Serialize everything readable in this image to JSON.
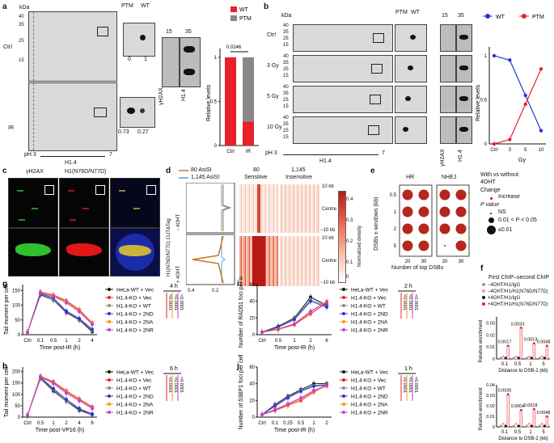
{
  "panels": {
    "a": {
      "label": "a",
      "kda": "kDa",
      "ticks_left": [
        "40",
        "35",
        "25",
        "15"
      ],
      "row_ctrl": "Ctrl",
      "row_ir": "IR",
      "ptm": "PTM",
      "wt": "WT",
      "ctrl_vals": [
        "0",
        "1"
      ],
      "ir_vals": [
        "0.73",
        "0.27"
      ],
      "ph3": "pH 3",
      "ph7": "7",
      "h14": "H1.4",
      "col15": "15",
      "col35": "35",
      "gamma": "γH2AX",
      "h14b": "H1.4",
      "chart_ylabel": "Relative levels",
      "pval": "0.0246",
      "legend_wt": "WT",
      "legend_ptm": "PTM"
    },
    "b": {
      "label": "b",
      "kda": "kDa",
      "ptm": "PTM",
      "wt": "WT",
      "rows": [
        "Ctrl",
        "3 Gy",
        "5 Gy",
        "10 Gy"
      ],
      "ticks": [
        "40",
        "35",
        "25",
        "15"
      ],
      "ph3": "pH 3",
      "ph7": "7",
      "h14": "H1.4",
      "col15": "15",
      "col35": "35",
      "gamma": "γH2AX",
      "h14b": "H1.4",
      "chart_ylabel": "Relative levels",
      "chart_xlabel": "Gy",
      "legend_wt": "WT",
      "legend_ptm": "PTM"
    },
    "c": {
      "label": "c",
      "col1": "γH2AX",
      "col2": "H1(N76D/N77D)"
    },
    "d": {
      "label": "d",
      "legend1": "80 AsiSI",
      "legend2": "1,145 AsiSI",
      "col1a": "80",
      "col1b": "Sensitive",
      "col2a": "1,145",
      "col2b": "Insensitive",
      "ylabel": "H1(N76D/N77D) CUT&Tag",
      "minus": "− 4OHT",
      "plus": "+ 4OHT",
      "tick10kb": "10 kb",
      "centre": "Centre",
      "tickm10kb": "−10 kb",
      "xticks": [
        "0.4",
        "0.2"
      ],
      "cbar_label": "Normalized density",
      "cbar_ticks": [
        "0.4",
        "0.3",
        "0.2",
        "0.1",
        "0"
      ]
    },
    "e": {
      "label": "e",
      "col_hr": "HR",
      "col_nhej": "NHEJ",
      "ylabel": "DSBs ± windows (kb)",
      "yticks": [
        "0.5",
        "1",
        "2",
        "5"
      ],
      "xticks": [
        "20",
        "30",
        "20",
        "30"
      ],
      "xlabel": "Number of top DSBs",
      "leg_title1": "With vs without",
      "leg_title2": "4OHT",
      "leg_change": "Change",
      "leg_increase": "Increase",
      "leg_p": "P value",
      "leg_ns": "NS",
      "leg_mid": "0.01 < P < 0.05",
      "leg_low": "≤0.01"
    },
    "f": {
      "label": "f",
      "legend_title": "First ChIP–second ChIP",
      "legend": [
        "−4OHT/H1/IgG",
        "−4OHT/H1/H1(N76D/N77D)",
        "+4OHT/H1/IgG",
        "+4OHT/H1/H1(N76D/N77D)"
      ],
      "ylabel": "Relative enrichment",
      "top_yticks": [
        "0.03",
        "0.02",
        "0.01",
        "0"
      ],
      "top_pvals": [
        "0.0017",
        "0.0033",
        "0.0013",
        "0.0048"
      ],
      "top_xlabel": "Distance to DSB-1 (kb)",
      "bot_yticks": [
        "0.04",
        "0.03",
        "0.02",
        "0.01",
        "0"
      ],
      "bot_pvals": [
        "0.0035",
        "0.0004",
        "0.0018",
        "0.0048"
      ],
      "bot_xlabel": "Distance to DSB-2 (kb)",
      "xticks": [
        "0.1",
        "0.5",
        "1",
        "5"
      ]
    },
    "g": {
      "label": "g",
      "ylabel": "Tail moment per cell",
      "xlabel": "Time post-IR (h)",
      "xticks": [
        "Ctrl",
        "0.1",
        "0.5",
        "1",
        "2",
        "4"
      ],
      "yticks": [
        "150",
        "100",
        "50",
        "0"
      ],
      "time": "4 h",
      "pvals": [
        "<0.0001",
        "<0.0001",
        "<0.0001"
      ]
    },
    "h": {
      "label": "h",
      "ylabel": "Tail moment per cell",
      "xlabel": "Time post-VP16 (h)",
      "xticks": [
        "Ctrl",
        "0.5",
        "1",
        "2",
        "4",
        "6"
      ],
      "yticks": [
        "200",
        "150",
        "100",
        "50",
        "0"
      ],
      "time": "6 h",
      "pvals": [
        "<0.0001",
        "<0.0001",
        "<0.0001"
      ]
    },
    "i": {
      "label": "i",
      "ylabel": "Number of RAD51 foci per cell",
      "xlabel": "Time post-IR (h)",
      "xticks": [
        "Ctrl",
        "0.5",
        "1",
        "2",
        "6"
      ],
      "yticks": [
        "60",
        "40",
        "20",
        "0"
      ],
      "time": "2 h",
      "pvals": [
        "<0.0001",
        "<0.0001",
        "<0.0001"
      ]
    },
    "j": {
      "label": "j",
      "ylabel": "Number of 53BP1 foci per cell",
      "xlabel": "Time post-IR (h)",
      "xticks": [
        "Ctrl",
        "0.1",
        "0.25",
        "0.5",
        "1",
        "2"
      ],
      "yticks": [
        "60",
        "40",
        "20",
        "0"
      ],
      "time": "1 h",
      "pvals": [
        "<0.0001",
        "<0.0001",
        "<0.0001"
      ]
    }
  },
  "line_legend": [
    "HeLa-WT + Vec",
    "H1.4-KO + Vec",
    "H1.4-KO + WT",
    "H1.4-KO + 2ND",
    "H1.4-KO + 2NA",
    "H1.4-KO + 2NR"
  ],
  "line_colors": [
    "#111111",
    "#e8202a",
    "#8c8c8c",
    "#2438d6",
    "#f29a1a",
    "#c43fd0"
  ],
  "chart_data": [
    {
      "type": "bar",
      "panel": "a",
      "categories": [
        "Ctrl",
        "IR"
      ],
      "series": [
        {
          "name": "WT",
          "values": [
            1,
            0.27
          ]
        },
        {
          "name": "PTM",
          "values": [
            0,
            0.73
          ]
        }
      ],
      "ylabel": "Relative levels",
      "ylim": [
        0,
        1.1
      ]
    },
    {
      "type": "line",
      "panel": "b",
      "x": [
        "Ctrl",
        "3",
        "5",
        "10"
      ],
      "series": [
        {
          "name": "WT",
          "values": [
            1,
            0.95,
            0.55,
            0.15
          ]
        },
        {
          "name": "PTM",
          "values": [
            0,
            0.05,
            0.45,
            0.85
          ]
        }
      ],
      "xlabel": "Gy",
      "ylabel": "Relative levels",
      "ylim": [
        0,
        1.1
      ]
    },
    {
      "type": "line",
      "panel": "g",
      "categories": [
        "Ctrl",
        "0.1",
        "0.5",
        "1",
        "2",
        "4"
      ],
      "ylim": [
        0,
        170
      ],
      "series": [
        {
          "name": "HeLa-WT + Vec",
          "values": [
            8,
            135,
            118,
            75,
            50,
            10
          ]
        },
        {
          "name": "H1.4-KO + Vec",
          "values": [
            8,
            145,
            135,
            115,
            85,
            40
          ]
        },
        {
          "name": "H1.4-KO + WT",
          "values": [
            8,
            138,
            120,
            78,
            52,
            14
          ]
        },
        {
          "name": "H1.4-KO + 2ND",
          "values": [
            8,
            140,
            125,
            80,
            55,
            18
          ]
        },
        {
          "name": "H1.4-KO + 2NA",
          "values": [
            8,
            145,
            133,
            112,
            82,
            38
          ]
        },
        {
          "name": "H1.4-KO + 2NR",
          "values": [
            8,
            143,
            130,
            108,
            78,
            35
          ]
        }
      ]
    },
    {
      "type": "line",
      "panel": "h",
      "categories": [
        "Ctrl",
        "0.5",
        "1",
        "2",
        "4",
        "6"
      ],
      "ylim": [
        0,
        220
      ],
      "series": [
        {
          "name": "HeLa-WT + Vec",
          "values": [
            8,
            170,
            115,
            70,
            30,
            10
          ]
        },
        {
          "name": "H1.4-KO + Vec",
          "values": [
            8,
            180,
            155,
            115,
            80,
            45
          ]
        },
        {
          "name": "H1.4-KO + WT",
          "values": [
            8,
            172,
            120,
            72,
            35,
            12
          ]
        },
        {
          "name": "H1.4-KO + 2ND",
          "values": [
            8,
            175,
            125,
            78,
            38,
            14
          ]
        },
        {
          "name": "H1.4-KO + 2NA",
          "values": [
            8,
            178,
            150,
            110,
            75,
            40
          ]
        },
        {
          "name": "H1.4-KO + 2NR",
          "values": [
            8,
            176,
            148,
            105,
            72,
            38
          ]
        }
      ]
    },
    {
      "type": "line",
      "panel": "i",
      "categories": [
        "Ctrl",
        "0.5",
        "1",
        "2",
        "6"
      ],
      "ylim": [
        0,
        60
      ],
      "series": [
        {
          "name": "HeLa-WT + Vec",
          "values": [
            3,
            10,
            20,
            45,
            35
          ]
        },
        {
          "name": "H1.4-KO + Vec",
          "values": [
            3,
            6,
            12,
            25,
            38
          ]
        },
        {
          "name": "H1.4-KO + WT",
          "values": [
            3,
            9,
            19,
            42,
            34
          ]
        },
        {
          "name": "H1.4-KO + 2ND",
          "values": [
            3,
            9,
            18,
            40,
            33
          ]
        },
        {
          "name": "H1.4-KO + 2NA",
          "values": [
            3,
            6,
            13,
            27,
            40
          ]
        },
        {
          "name": "H1.4-KO + 2NR",
          "values": [
            3,
            7,
            13,
            28,
            39
          ]
        }
      ]
    },
    {
      "type": "line",
      "panel": "j",
      "categories": [
        "Ctrl",
        "0.1",
        "0.25",
        "0.5",
        "1",
        "2"
      ],
      "ylim": [
        0,
        60
      ],
      "series": [
        {
          "name": "HeLa-WT + Vec",
          "values": [
            3,
            15,
            25,
            33,
            40,
            40
          ]
        },
        {
          "name": "H1.4-KO + Vec",
          "values": [
            3,
            8,
            14,
            20,
            30,
            38
          ]
        },
        {
          "name": "H1.4-KO + WT",
          "values": [
            3,
            14,
            24,
            32,
            38,
            39
          ]
        },
        {
          "name": "H1.4-KO + 2ND",
          "values": [
            3,
            13,
            23,
            31,
            37,
            38
          ]
        },
        {
          "name": "H1.4-KO + 2NA",
          "values": [
            3,
            9,
            15,
            22,
            31,
            37
          ]
        },
        {
          "name": "H1.4-KO + 2NR",
          "values": [
            3,
            9,
            16,
            23,
            32,
            38
          ]
        }
      ]
    },
    {
      "type": "bar",
      "panel": "f-top",
      "categories": [
        "0.1",
        "0.5",
        "1",
        "5"
      ],
      "ylim": [
        0,
        0.035
      ],
      "series": [
        {
          "name": "−4OHT/H1/IgG",
          "values": [
            0.001,
            0.001,
            0.001,
            0.001
          ]
        },
        {
          "name": "−4OHT/H1/H1(N76D/N77D)",
          "values": [
            0.002,
            0.002,
            0.002,
            0.002
          ]
        },
        {
          "name": "+4OHT/H1/IgG",
          "values": [
            0.001,
            0.001,
            0.001,
            0.001
          ]
        },
        {
          "name": "+4OHT/H1/H1(N76D/N77D)",
          "values": [
            0.011,
            0.026,
            0.013,
            0.011
          ]
        }
      ]
    },
    {
      "type": "bar",
      "panel": "f-bottom",
      "categories": [
        "0.1",
        "0.5",
        "1",
        "5"
      ],
      "ylim": [
        0,
        0.04
      ],
      "series": [
        {
          "name": "−4OHT/H1/IgG",
          "values": [
            0.001,
            0.001,
            0.001,
            0.001
          ]
        },
        {
          "name": "−4OHT/H1/H1(N76D/N77D)",
          "values": [
            0.003,
            0.003,
            0.003,
            0.003
          ]
        },
        {
          "name": "+4OHT/H1/IgG",
          "values": [
            0.001,
            0.001,
            0.001,
            0.001
          ]
        },
        {
          "name": "+4OHT/H1/H1(N76D/N77D)",
          "values": [
            0.031,
            0.016,
            0.017,
            0.01
          ]
        }
      ]
    }
  ]
}
